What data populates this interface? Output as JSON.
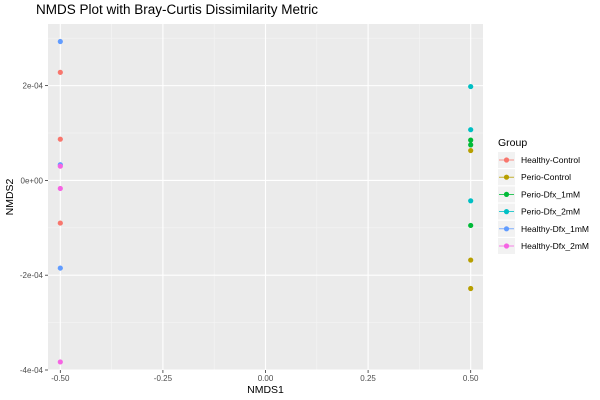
{
  "chart_data": {
    "type": "scatter",
    "title": "NMDS Plot with Bray-Curtis Dissimilarity Metric",
    "xlabel": "NMDS1",
    "ylabel": "NMDS2",
    "xlim": [
      -0.53,
      0.53
    ],
    "ylim": [
      -0.0004,
      0.00033
    ],
    "x_ticks": [
      -0.5,
      -0.25,
      0,
      0.25,
      0.5
    ],
    "x_tick_labels": [
      "-0.50",
      "-0.25",
      "0.00",
      "0.25",
      "0.50"
    ],
    "y_ticks": [
      -0.0004,
      -0.0002,
      0,
      0.0002
    ],
    "y_tick_labels": [
      "-4e-04",
      "-2e-04",
      "0e+00",
      "2e-04"
    ],
    "grid": true,
    "legend": {
      "title": "Group",
      "placement": "right"
    },
    "series": [
      {
        "name": "Healthy-Control",
        "color": "#F8766D",
        "points": [
          [
            -0.5,
            0.000228
          ],
          [
            -0.5,
            8.7e-05
          ],
          [
            -0.5,
            -9e-05
          ]
        ]
      },
      {
        "name": "Perio-Control",
        "color": "#B79F00",
        "points": [
          [
            0.5,
            6.3e-05
          ],
          [
            0.5,
            -0.000168
          ],
          [
            0.5,
            -0.000228
          ]
        ]
      },
      {
        "name": "Perio-Dfx_1mM",
        "color": "#00BA38",
        "points": [
          [
            0.5,
            8.5e-05
          ],
          [
            0.5,
            7.5e-05
          ],
          [
            0.5,
            -9.5e-05
          ]
        ]
      },
      {
        "name": "Perio-Dfx_2mM",
        "color": "#00BFC4",
        "points": [
          [
            0.5,
            0.000198
          ],
          [
            0.5,
            0.000107
          ],
          [
            0.5,
            -4.3e-05
          ]
        ]
      },
      {
        "name": "Healthy-Dfx_1mM",
        "color": "#619CFF",
        "points": [
          [
            -0.5,
            0.000293
          ],
          [
            -0.5,
            3.3e-05
          ],
          [
            -0.5,
            -0.000185
          ]
        ]
      },
      {
        "name": "Healthy-Dfx_2mM",
        "color": "#F564E3",
        "points": [
          [
            -0.5,
            3e-05
          ],
          [
            -0.5,
            -1.7e-05
          ],
          [
            -0.5,
            -0.000383
          ]
        ]
      }
    ]
  }
}
